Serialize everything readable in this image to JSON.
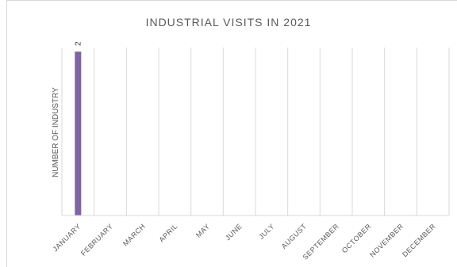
{
  "chart_data": {
    "type": "bar",
    "title": "INDUSTRIAL VISITS IN 2021",
    "ylabel": "NUMBER OF INDUSTRY",
    "xlabel": "",
    "categories": [
      "JANUARY",
      "FEBRUARY",
      "MARCH",
      "APRIL",
      "MAY",
      "JUNE",
      "JULY",
      "AUGUST",
      "SEPTEMBER",
      "OCTOBER",
      "NOVEMBER",
      "DECEMBER"
    ],
    "series": [
      {
        "values": [
          2,
          null,
          null,
          null,
          null,
          null,
          null,
          null,
          null,
          null,
          null,
          null
        ]
      }
    ],
    "data_labels": [
      "2"
    ],
    "ylim": [
      0,
      2.05
    ],
    "grid": "vertical",
    "legend": "none",
    "bar_color": "#8064a2"
  }
}
